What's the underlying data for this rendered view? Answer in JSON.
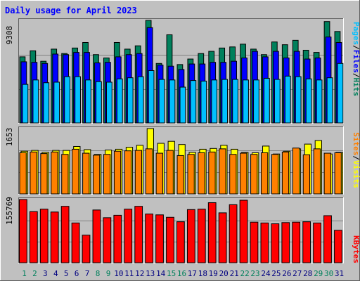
{
  "title": "Daily usage for April 2023",
  "colors": {
    "background": "#C0C0C0",
    "title": "#0000FF",
    "hits": "#00805C",
    "files": "#0000FF",
    "pages": "#00C0FF",
    "visits": "#FFFF00",
    "sites": "#FF8000",
    "kbytes": "#FF0000",
    "weekend_day": "#00805C",
    "weekday": "#000080"
  },
  "chart_data": [
    {
      "type": "bar",
      "panel": "top",
      "max_label": "9308",
      "ylim": [
        0,
        9308
      ],
      "categories": [
        "1",
        "2",
        "3",
        "4",
        "5",
        "6",
        "7",
        "8",
        "9",
        "10",
        "11",
        "12",
        "13",
        "14",
        "15",
        "16",
        "17",
        "18",
        "19",
        "20",
        "21",
        "22",
        "23",
        "24",
        "25",
        "26",
        "27",
        "28",
        "29",
        "30",
        "31"
      ],
      "weekend": [
        1,
        2,
        8,
        9,
        15,
        16,
        22,
        23,
        29,
        30
      ],
      "series": [
        {
          "name": "Hits",
          "values": [
            6000,
            6550,
            5600,
            6700,
            6300,
            6800,
            7300,
            6200,
            5900,
            7300,
            6700,
            7000,
            9308,
            5400,
            8000,
            5300,
            5800,
            6300,
            6500,
            6800,
            6900,
            7150,
            6700,
            6200,
            7350,
            7100,
            7500,
            6600,
            6400,
            9200,
            8300
          ]
        },
        {
          "name": "Files",
          "values": [
            5550,
            5500,
            5400,
            6250,
            6200,
            6400,
            6400,
            5450,
            5500,
            6000,
            6200,
            6300,
            8650,
            5250,
            5150,
            4850,
            5350,
            5350,
            5500,
            5500,
            5600,
            5900,
            6500,
            6000,
            6500,
            5900,
            6500,
            5800,
            5900,
            7800,
            7300
          ]
        },
        {
          "name": "Pages",
          "values": [
            3500,
            3900,
            3650,
            3700,
            4200,
            4200,
            3900,
            3750,
            3700,
            4000,
            4100,
            4200,
            4750,
            3950,
            3900,
            3250,
            3850,
            3800,
            3900,
            3950,
            3950,
            3900,
            3900,
            4050,
            3950,
            4250,
            4200,
            4000,
            3900,
            4100,
            5400
          ]
        }
      ]
    },
    {
      "type": "bar",
      "panel": "middle",
      "max_label": "1653",
      "ylim": [
        0,
        1653
      ],
      "categories": [
        "1",
        "2",
        "3",
        "4",
        "5",
        "6",
        "7",
        "8",
        "9",
        "10",
        "11",
        "12",
        "13",
        "14",
        "15",
        "16",
        "17",
        "18",
        "19",
        "20",
        "21",
        "22",
        "23",
        "24",
        "25",
        "26",
        "27",
        "28",
        "29",
        "30",
        "31"
      ],
      "series": [
        {
          "name": "Visits",
          "values": [
            1080,
            1100,
            1050,
            1100,
            1100,
            1200,
            1120,
            1000,
            1110,
            1130,
            1180,
            1230,
            1653,
            1280,
            1330,
            1250,
            1050,
            1130,
            1150,
            1230,
            1130,
            1050,
            1040,
            1210,
            1010,
            1080,
            1140,
            1260,
            1350,
            1010,
            1050
          ]
        },
        {
          "name": "Sites",
          "values": [
            1040,
            1060,
            1020,
            1060,
            1000,
            1130,
            1030,
            980,
            1000,
            1080,
            1090,
            1100,
            1140,
            1030,
            1100,
            970,
            1000,
            1040,
            1060,
            1140,
            1000,
            1030,
            1000,
            1040,
            1000,
            1060,
            1160,
            990,
            1140,
            1030,
            1040
          ]
        }
      ]
    },
    {
      "type": "bar",
      "panel": "bottom",
      "max_label": "155769",
      "ylim": [
        0,
        155769
      ],
      "categories": [
        "1",
        "2",
        "3",
        "4",
        "5",
        "6",
        "7",
        "8",
        "9",
        "10",
        "11",
        "12",
        "13",
        "14",
        "15",
        "16",
        "17",
        "18",
        "19",
        "20",
        "21",
        "22",
        "23",
        "24",
        "25",
        "26",
        "27",
        "28",
        "29",
        "30",
        "31"
      ],
      "series": [
        {
          "name": "KBytes",
          "values": [
            155769,
            126000,
            132000,
            125000,
            139000,
            98000,
            68000,
            130000,
            111000,
            117000,
            132000,
            139000,
            120000,
            118000,
            112000,
            101000,
            131000,
            132000,
            148000,
            123000,
            143000,
            154000,
            100000,
            98000,
            96000,
            99000,
            100000,
            101000,
            98000,
            116000,
            80000
          ]
        }
      ]
    }
  ],
  "legend": {
    "top": [
      "Pages",
      "/",
      "Files",
      "/",
      "Hits"
    ],
    "middle": [
      "Sites",
      "/",
      "Visits"
    ],
    "bottom": [
      "KBytes"
    ]
  }
}
